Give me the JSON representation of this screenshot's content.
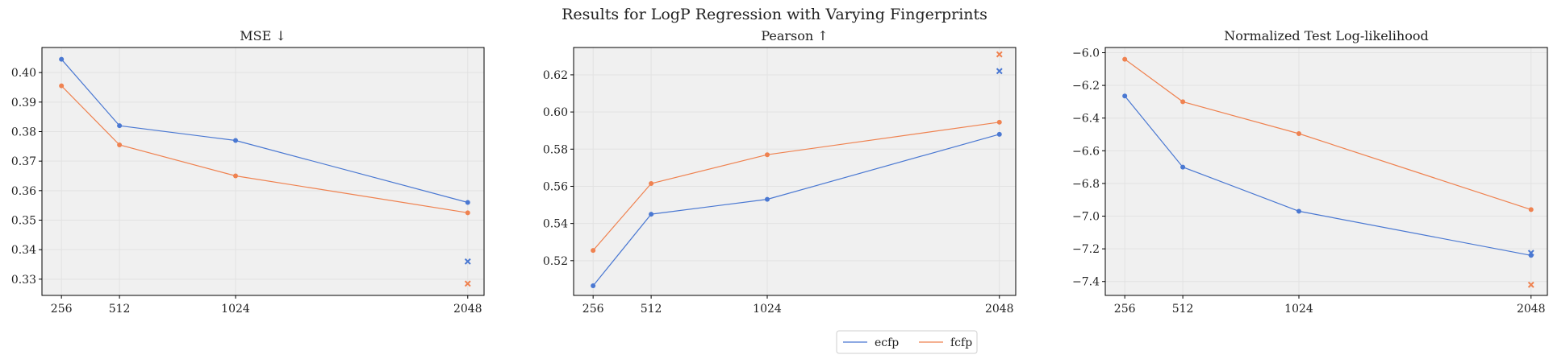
{
  "figure_title": "Results for LogP Regression with Varying Fingerprints",
  "colors": {
    "ecfp": "#4a78d2",
    "fcfp": "#ef8250",
    "panel_bg": "#f0f0f0",
    "grid": "#e2e2e2"
  },
  "legend": {
    "placement": "bottom-center",
    "entries": [
      "ecfp",
      "fcfp"
    ]
  },
  "chart_data": [
    {
      "type": "line",
      "title": "MSE ↓",
      "x": [
        256,
        512,
        1024,
        2048
      ],
      "xticks": [
        "256",
        "512",
        "1024",
        "2048"
      ],
      "xlim": [
        170,
        2120
      ],
      "ylim": [
        0.3245,
        0.4085
      ],
      "yticks": [
        0.33,
        0.34,
        0.35,
        0.36,
        0.37,
        0.38,
        0.39,
        0.4
      ],
      "ytick_labels": [
        "0.33",
        "0.34",
        "0.35",
        "0.36",
        "0.37",
        "0.38",
        "0.39",
        "0.40"
      ],
      "grid": true,
      "series": [
        {
          "name": "ecfp",
          "values": [
            0.4045,
            0.382,
            0.377,
            0.356
          ],
          "extra_marker": {
            "x": 2048,
            "y": 0.336,
            "marker": "x"
          }
        },
        {
          "name": "fcfp",
          "values": [
            0.3955,
            0.3755,
            0.365,
            0.3525
          ],
          "extra_marker": {
            "x": 2048,
            "y": 0.3285,
            "marker": "x"
          }
        }
      ]
    },
    {
      "type": "line",
      "title": "Pearson ↑",
      "x": [
        256,
        512,
        1024,
        2048
      ],
      "xticks": [
        "256",
        "512",
        "1024",
        "2048"
      ],
      "xlim": [
        170,
        2120
      ],
      "ylim": [
        0.5013,
        0.6347
      ],
      "yticks": [
        0.52,
        0.54,
        0.56,
        0.58,
        0.6,
        0.62
      ],
      "ytick_labels": [
        "0.52",
        "0.54",
        "0.56",
        "0.58",
        "0.60",
        "0.62"
      ],
      "grid": true,
      "series": [
        {
          "name": "ecfp",
          "values": [
            0.5065,
            0.545,
            0.553,
            0.588
          ],
          "extra_marker": {
            "x": 2048,
            "y": 0.622,
            "marker": "x"
          }
        },
        {
          "name": "fcfp",
          "values": [
            0.5255,
            0.5615,
            0.577,
            0.5945
          ],
          "extra_marker": {
            "x": 2048,
            "y": 0.631,
            "marker": "x"
          }
        }
      ]
    },
    {
      "type": "line",
      "title": "Normalized Test Log-likelihood",
      "x": [
        256,
        512,
        1024,
        2048
      ],
      "xticks": [
        "256",
        "512",
        "1024",
        "2048"
      ],
      "xlim": [
        170,
        2120
      ],
      "ylim": [
        -7.485,
        -5.968
      ],
      "yticks": [
        -7.4,
        -7.2,
        -7.0,
        -6.8,
        -6.6,
        -6.4,
        -6.2,
        -6.0
      ],
      "ytick_labels": [
        "−7.4",
        "−7.2",
        "−7.0",
        "−6.8",
        "−6.6",
        "−6.4",
        "−6.2",
        "−6.0"
      ],
      "grid": true,
      "series": [
        {
          "name": "ecfp",
          "values": [
            -6.265,
            -6.7,
            -6.97,
            -7.24
          ],
          "extra_marker": {
            "x": 2048,
            "y": -7.225,
            "marker": "x"
          }
        },
        {
          "name": "fcfp",
          "values": [
            -6.04,
            -6.3,
            -6.495,
            -6.96
          ],
          "extra_marker": {
            "x": 2048,
            "y": -7.42,
            "marker": "x"
          }
        }
      ]
    }
  ]
}
